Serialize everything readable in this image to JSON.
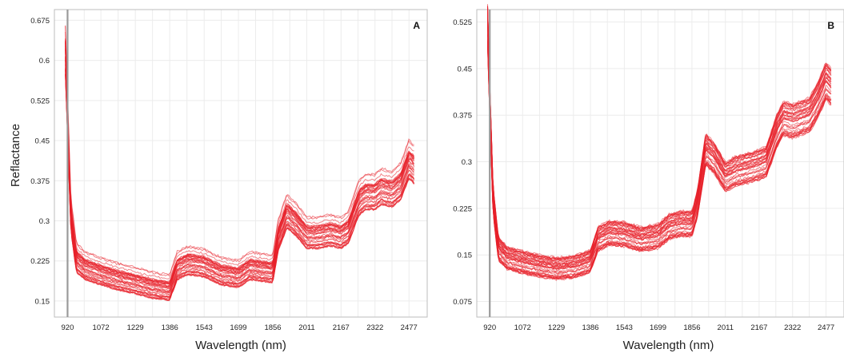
{
  "chart_data": [
    {
      "type": "line",
      "panel_label": "A",
      "xlabel": "Wavelength (nm)",
      "ylabel": "Reflactance",
      "x_ticks": [
        "920",
        "1072",
        "1229",
        "1386",
        "1543",
        "1699",
        "1856",
        "2011",
        "2167",
        "2322",
        "2477"
      ],
      "y_ticks": [
        "0.15",
        "0.225",
        "0.3",
        "0.375",
        "0.45",
        "0.525",
        "0.6",
        "0.675"
      ],
      "xlim": [
        860,
        2560
      ],
      "ylim": [
        0.12,
        0.695
      ],
      "grid": true,
      "vertical_marker_x": 920,
      "series_count": 40,
      "mean_spectrum": {
        "x": [
          910,
          920,
          935,
          960,
          1000,
          1072,
          1150,
          1229,
          1300,
          1386,
          1420,
          1470,
          1543,
          1620,
          1699,
          1750,
          1840,
          1856,
          1880,
          1920,
          1960,
          2011,
          2060,
          2120,
          2167,
          2200,
          2250,
          2280,
          2322,
          2350,
          2400,
          2440,
          2477,
          2500
        ],
        "y": [
          0.6,
          0.48,
          0.3,
          0.22,
          0.205,
          0.195,
          0.185,
          0.178,
          0.17,
          0.165,
          0.205,
          0.215,
          0.21,
          0.195,
          0.19,
          0.205,
          0.2,
          0.2,
          0.26,
          0.305,
          0.29,
          0.265,
          0.265,
          0.27,
          0.265,
          0.275,
          0.33,
          0.34,
          0.34,
          0.35,
          0.345,
          0.36,
          0.4,
          0.39
        ],
        "spread_low": 0.03,
        "spread_high": 0.065
      }
    },
    {
      "type": "line",
      "panel_label": "B",
      "xlabel": "Wavelength (nm)",
      "ylabel": "",
      "x_ticks": [
        "920",
        "1072",
        "1229",
        "1386",
        "1543",
        "1699",
        "1856",
        "2011",
        "2167",
        "2322",
        "2477"
      ],
      "y_ticks": [
        "0.075",
        "0.15",
        "0.225",
        "0.3",
        "0.375",
        "0.45",
        "0.525"
      ],
      "xlim": [
        860,
        2560
      ],
      "ylim": [
        0.05,
        0.545
      ],
      "grid": true,
      "vertical_marker_x": 920,
      "series_count": 40,
      "mean_spectrum": {
        "x": [
          910,
          920,
          935,
          960,
          1000,
          1072,
          1150,
          1229,
          1300,
          1350,
          1386,
          1420,
          1470,
          1543,
          1620,
          1699,
          1750,
          1800,
          1856,
          1880,
          1920,
          1960,
          2011,
          2060,
          2120,
          2167,
          2200,
          2250,
          2280,
          2322,
          2360,
          2400,
          2440,
          2477,
          2500
        ],
        "y": [
          0.52,
          0.4,
          0.24,
          0.16,
          0.145,
          0.138,
          0.132,
          0.128,
          0.13,
          0.135,
          0.14,
          0.175,
          0.185,
          0.183,
          0.175,
          0.18,
          0.195,
          0.2,
          0.2,
          0.23,
          0.32,
          0.305,
          0.275,
          0.285,
          0.29,
          0.295,
          0.3,
          0.35,
          0.37,
          0.365,
          0.37,
          0.375,
          0.4,
          0.43,
          0.42
        ],
        "spread_low": 0.035,
        "spread_high": 0.04
      }
    }
  ]
}
